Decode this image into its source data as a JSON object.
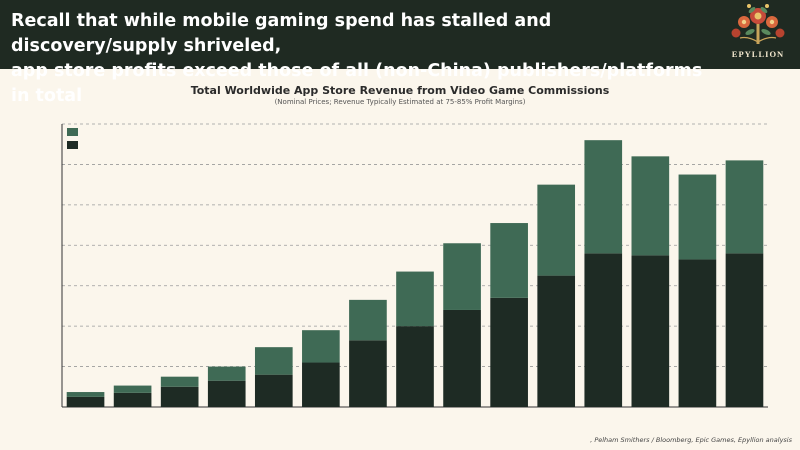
{
  "header": {
    "headline_line1": "Recall that while mobile gaming spend has stalled and discovery/supply shriveled,",
    "headline_line2": "app store profits exceed those of all (non-China) publishers/platforms in total",
    "logo_text": "EPYLLION",
    "logo_icon": "floral-tree-icon"
  },
  "colors": {
    "background": "#fbf6ec",
    "header_bg": "#1f2a22",
    "series_top": "#3f6a55",
    "series_bottom": "#1e2b24"
  },
  "chart_data": {
    "type": "bar",
    "stacked": true,
    "title": "Total Worldwide App Store Revenue from Video Game Commissions",
    "subtitle": "(Nominal Prices; Revenue Typically Estimated at 75-85% Profit Margins)",
    "xlabel": "",
    "ylabel": "",
    "ylim": [
      0,
      7
    ],
    "gridlines": [
      1,
      2,
      3,
      4,
      5,
      6,
      7
    ],
    "grid": "dashed horizontal",
    "legend_position": "top-left",
    "categories": [
      "",
      "",
      "",
      "",
      "",
      "",
      "",
      "",
      "",
      "",
      "",
      "",
      "",
      "",
      ""
    ],
    "series": [
      {
        "values": [
          0.25,
          0.35,
          0.5,
          0.65,
          0.8,
          1.1,
          1.65,
          2.0,
          2.4,
          2.7,
          3.25,
          3.8,
          3.75,
          3.65,
          3.8
        ]
      },
      {
        "values": [
          0.12,
          0.18,
          0.25,
          0.35,
          0.68,
          0.8,
          1.0,
          1.35,
          1.65,
          1.85,
          2.25,
          2.8,
          2.45,
          2.1,
          2.3
        ]
      }
    ]
  },
  "source": ", Pelham Smithers / Bloomberg, Epic Games, Epyllion analysis"
}
